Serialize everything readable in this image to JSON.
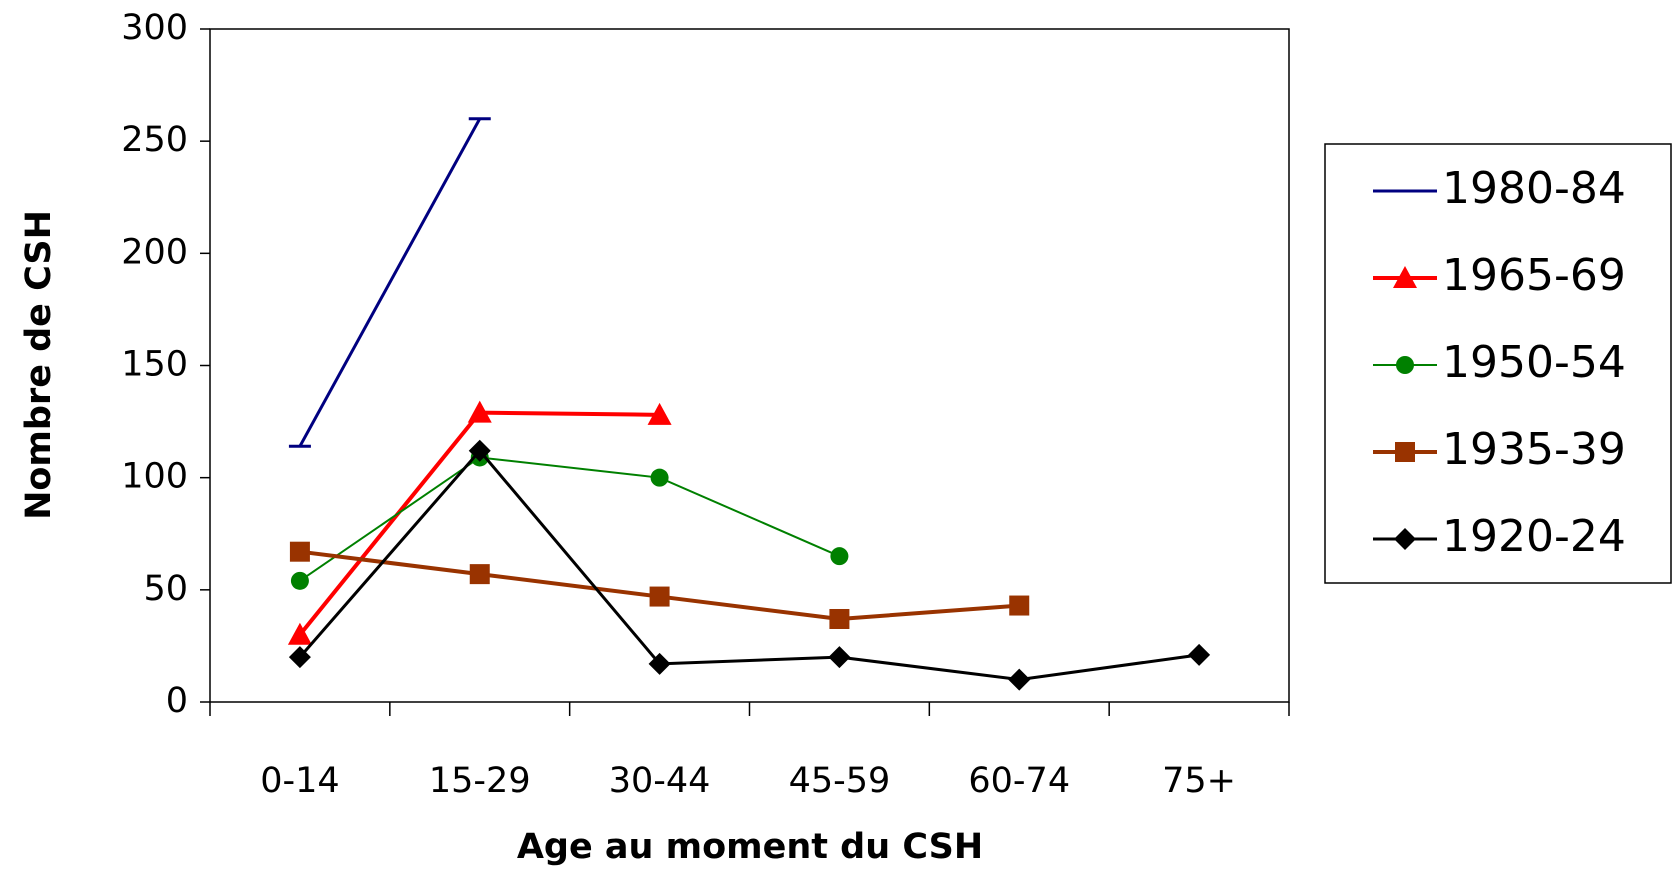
{
  "chart_data": {
    "type": "line",
    "x_label": "Age au moment du CSH",
    "y_label": "Nombre de CSH",
    "categories": [
      "0-14",
      "15-29",
      "30-44",
      "45-59",
      "60-74",
      "75+"
    ],
    "ylim": [
      0,
      300
    ],
    "yticks": [
      0,
      50,
      100,
      150,
      200,
      250,
      300
    ],
    "legend": "right",
    "series": [
      {
        "name": "1980-84",
        "color": "#000080",
        "marker": "dash",
        "values": [
          114,
          260,
          null,
          null,
          null,
          null
        ]
      },
      {
        "name": "1965-69",
        "color": "#ff0000",
        "marker": "triangle",
        "values": [
          30,
          129,
          128,
          null,
          null,
          null
        ]
      },
      {
        "name": "1950-54",
        "color": "#008000",
        "marker": "circle",
        "values": [
          54,
          109,
          100,
          65,
          null,
          null
        ]
      },
      {
        "name": "1935-39",
        "color": "#993300",
        "marker": "square",
        "values": [
          67,
          57,
          47,
          37,
          43,
          null
        ]
      },
      {
        "name": "1920-24",
        "color": "#000000",
        "marker": "diamond",
        "values": [
          20,
          112,
          17,
          20,
          10,
          21
        ]
      }
    ]
  }
}
